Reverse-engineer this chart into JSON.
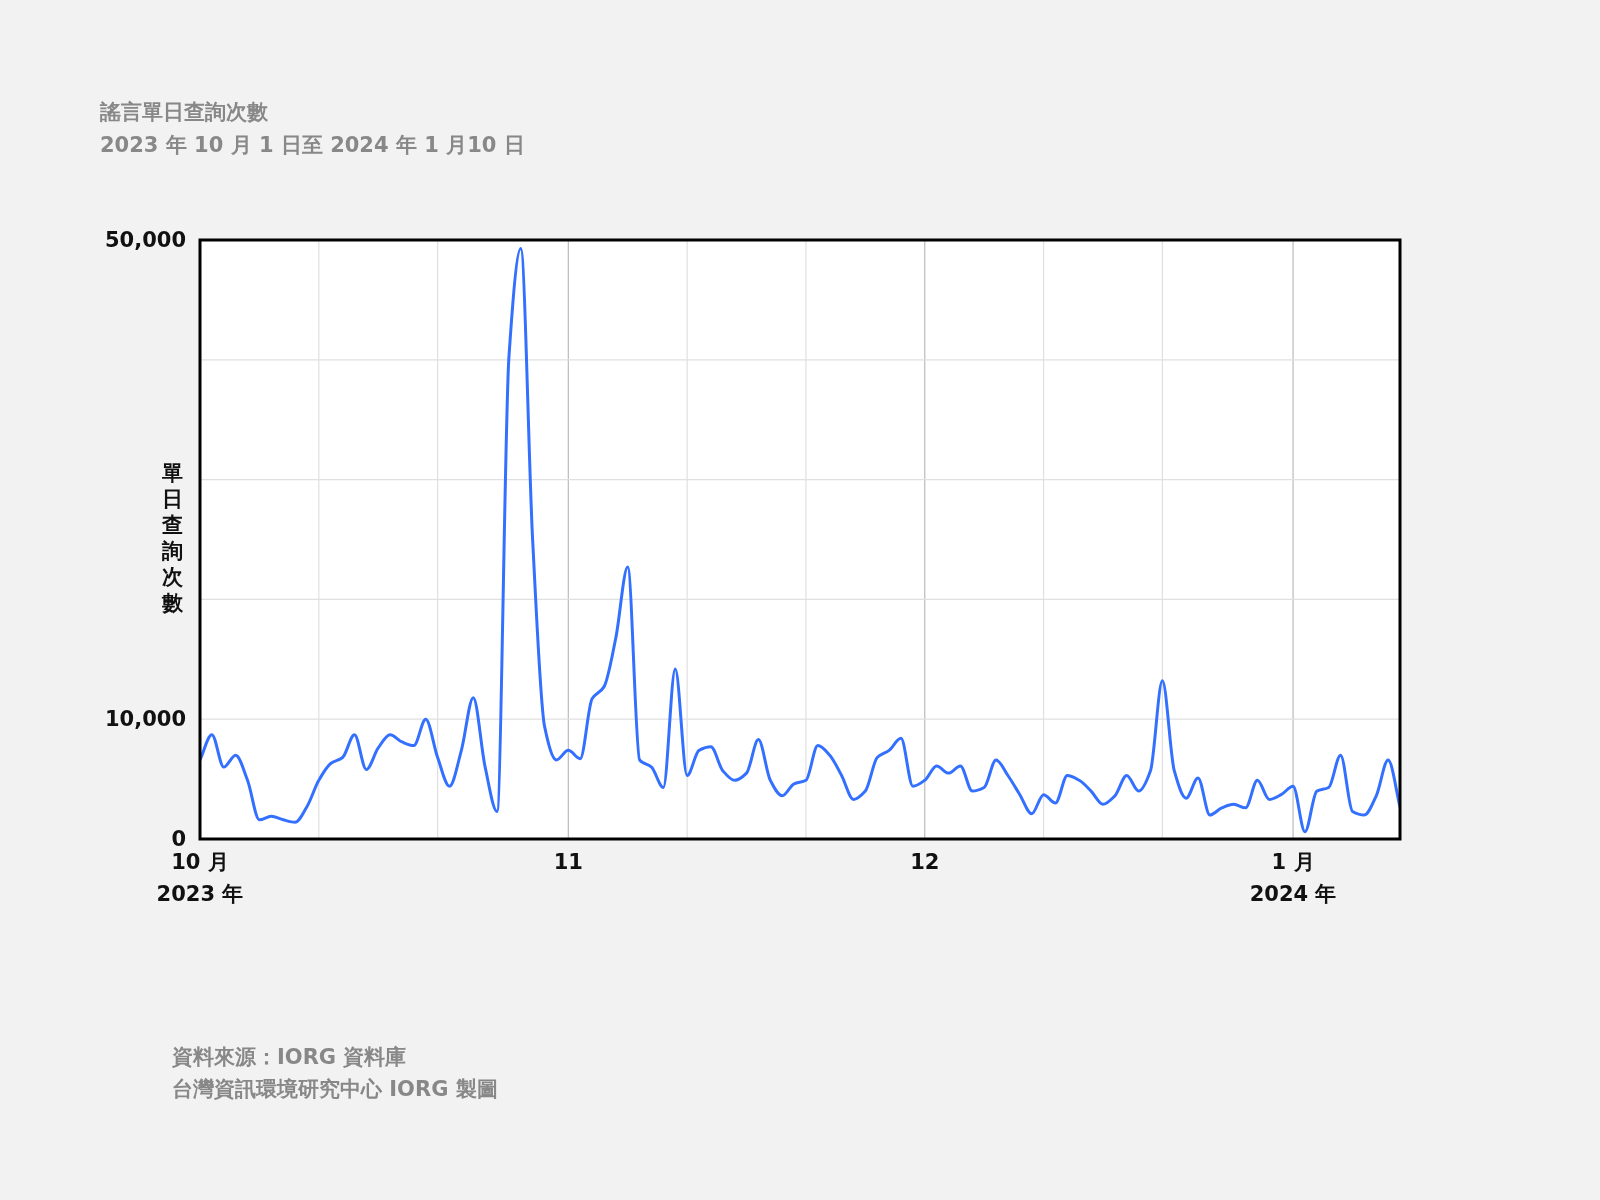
{
  "chart_data": {
    "type": "line",
    "title": "謠言單日查詢次數",
    "subtitle": "2023 年 10 月 1 日至 2024 年 1 月10 日",
    "ylabel": "單日查詢次數",
    "annotations": [
      "資料來源：IORG 資料庫",
      "台灣資訊環境研究中心 IORG 製圖"
    ],
    "x": [
      "2023-10-01",
      "2023-10-02",
      "2023-10-03",
      "2023-10-04",
      "2023-10-05",
      "2023-10-06",
      "2023-10-07",
      "2023-10-08",
      "2023-10-09",
      "2023-10-10",
      "2023-10-11",
      "2023-10-12",
      "2023-10-13",
      "2023-10-14",
      "2023-10-15",
      "2023-10-16",
      "2023-10-17",
      "2023-10-18",
      "2023-10-19",
      "2023-10-20",
      "2023-10-21",
      "2023-10-22",
      "2023-10-23",
      "2023-10-24",
      "2023-10-25",
      "2023-10-26",
      "2023-10-27",
      "2023-10-28",
      "2023-10-29",
      "2023-10-30",
      "2023-10-31",
      "2023-11-01",
      "2023-11-02",
      "2023-11-03",
      "2023-11-04",
      "2023-11-05",
      "2023-11-06",
      "2023-11-07",
      "2023-11-08",
      "2023-11-09",
      "2023-11-10",
      "2023-11-11",
      "2023-11-12",
      "2023-11-13",
      "2023-11-14",
      "2023-11-15",
      "2023-11-16",
      "2023-11-17",
      "2023-11-18",
      "2023-11-19",
      "2023-11-20",
      "2023-11-21",
      "2023-11-22",
      "2023-11-23",
      "2023-11-24",
      "2023-11-25",
      "2023-11-26",
      "2023-11-27",
      "2023-11-28",
      "2023-11-29",
      "2023-11-30",
      "2023-12-01",
      "2023-12-02",
      "2023-12-03",
      "2023-12-04",
      "2023-12-05",
      "2023-12-06",
      "2023-12-07",
      "2023-12-08",
      "2023-12-09",
      "2023-12-10",
      "2023-12-11",
      "2023-12-12",
      "2023-12-13",
      "2023-12-14",
      "2023-12-15",
      "2023-12-16",
      "2023-12-17",
      "2023-12-18",
      "2023-12-19",
      "2023-12-20",
      "2023-12-21",
      "2023-12-22",
      "2023-12-23",
      "2023-12-24",
      "2023-12-25",
      "2023-12-26",
      "2023-12-27",
      "2023-12-28",
      "2023-12-29",
      "2023-12-30",
      "2023-12-31",
      "2024-01-01",
      "2024-01-02",
      "2024-01-03",
      "2024-01-04",
      "2024-01-05",
      "2024-01-06",
      "2024-01-07",
      "2024-01-08",
      "2024-01-09",
      "2024-01-10"
    ],
    "series": [
      {
        "color": "#3370ff",
        "values": [
          6600,
          8700,
          6000,
          7000,
          4900,
          1600,
          1900,
          1600,
          1400,
          2700,
          4900,
          6300,
          6800,
          8700,
          5800,
          7600,
          8700,
          8100,
          7800,
          10000,
          6800,
          4400,
          7400,
          11800,
          6000,
          2300,
          40200,
          49300,
          24900,
          9400,
          6600,
          7400,
          6700,
          11700,
          12700,
          16800,
          22700,
          6600,
          6000,
          4300,
          14200,
          5300,
          7400,
          7700,
          5700,
          4900,
          5500,
          8300,
          4900,
          3600,
          4600,
          4900,
          7800,
          7000,
          5300,
          3300,
          4000,
          6800,
          7400,
          8400,
          4400,
          4900,
          6100,
          5500,
          6100,
          4000,
          4300,
          6600,
          5300,
          3700,
          2100,
          3700,
          3000,
          5300,
          4900,
          4000,
          2900,
          3600,
          5300,
          4000,
          5700,
          13200,
          5700,
          3400,
          5100,
          2000,
          2600,
          2900,
          2600,
          4900,
          3300,
          3700,
          4400,
          600,
          4000,
          4300,
          7000,
          2300,
          2000,
          3600,
          6600,
          2700
        ]
      }
    ],
    "xlim": [
      "2023-10-01",
      "2024-01-10"
    ],
    "xticks": [
      {
        "value": "2023-10-01",
        "label": "10 月\n2023 年"
      },
      {
        "value": "2023-10-11",
        "label": null
      },
      {
        "value": "2023-10-21",
        "label": null
      },
      {
        "value": "2023-11-01",
        "label": "11"
      },
      {
        "value": "2023-11-11",
        "label": null
      },
      {
        "value": "2023-11-21",
        "label": null
      },
      {
        "value": "2023-12-01",
        "label": "12"
      },
      {
        "value": "2023-12-11",
        "label": null
      },
      {
        "value": "2023-12-21",
        "label": null
      },
      {
        "value": "2024-01-01",
        "label": "1 月\n2024 年"
      }
    ],
    "ylim": [
      0,
      50000
    ],
    "yticks": [
      0,
      {
        "value": 10000,
        "label": "10,000"
      },
      {
        "value": 20000,
        "label": null
      },
      {
        "value": 30000,
        "label": null
      },
      {
        "value": 40000,
        "label": null
      },
      {
        "value": 50000,
        "label": "50,000"
      }
    ],
    "grid": true,
    "line_style": "solid"
  }
}
